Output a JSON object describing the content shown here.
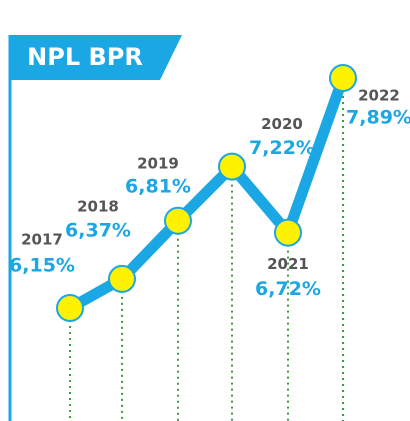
{
  "chart_data": {
    "type": "line",
    "title": "NPL BPR",
    "categories": [
      "2017",
      "2018",
      "2019",
      "2020",
      "2021",
      "2022"
    ],
    "values": [
      6.15,
      6.37,
      6.81,
      7.22,
      6.72,
      7.89
    ],
    "value_labels": [
      "6,15%",
      "6,37%",
      "6,81%",
      "7,22%",
      "6,72%",
      "7,89%"
    ],
    "color": "#1ba6e4",
    "marker_color": "#fff200",
    "drop_line_color": "#3f9c3f"
  }
}
